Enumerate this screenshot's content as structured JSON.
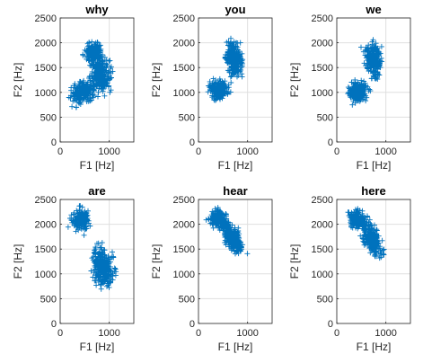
{
  "chart_data": [
    {
      "type": "scatter",
      "title": "why",
      "xlabel": "F1 [Hz]",
      "ylabel": "F2 [Hz]",
      "xlim": [
        0,
        1500
      ],
      "ylim": [
        0,
        2500
      ],
      "xticks": [
        "0",
        "1000"
      ],
      "yticks": [
        "0",
        "500",
        "1000",
        "1500",
        "2000",
        "2500"
      ],
      "grid": true,
      "marker": "+",
      "color": "#0072BD",
      "clusters": [
        {
          "cx": 450,
          "cy": 1000,
          "rx": 240,
          "ry": 170,
          "rot": 25,
          "n": 260
        },
        {
          "cx": 820,
          "cy": 1350,
          "rx": 200,
          "ry": 330,
          "rot": 5,
          "n": 240
        },
        {
          "cx": 680,
          "cy": 1800,
          "rx": 170,
          "ry": 210,
          "rot": 0,
          "n": 180
        }
      ]
    },
    {
      "type": "scatter",
      "title": "you",
      "xlabel": "F1 [Hz]",
      "ylabel": "F2 [Hz]",
      "xlim": [
        0,
        1500
      ],
      "ylim": [
        0,
        2500
      ],
      "xticks": [
        "0",
        "1000"
      ],
      "yticks": [
        "0",
        "500",
        "1000",
        "1500",
        "2000",
        "2500"
      ],
      "grid": true,
      "marker": "+",
      "color": "#0072BD",
      "clusters": [
        {
          "cx": 420,
          "cy": 1050,
          "rx": 170,
          "ry": 190,
          "rot": 40,
          "n": 220
        },
        {
          "cx": 720,
          "cy": 1650,
          "rx": 150,
          "ry": 340,
          "rot": 8,
          "n": 260
        }
      ]
    },
    {
      "type": "scatter",
      "title": "we",
      "xlabel": "F1 [Hz]",
      "ylabel": "F2 [Hz]",
      "xlim": [
        0,
        1500
      ],
      "ylim": [
        0,
        2500
      ],
      "xticks": [
        "0",
        "1000"
      ],
      "yticks": [
        "0",
        "500",
        "1000",
        "1500",
        "2000",
        "2500"
      ],
      "grid": true,
      "marker": "+",
      "color": "#0072BD",
      "clusters": [
        {
          "cx": 420,
          "cy": 1000,
          "rx": 180,
          "ry": 180,
          "rot": 35,
          "n": 220
        },
        {
          "cx": 740,
          "cy": 1650,
          "rx": 160,
          "ry": 330,
          "rot": 8,
          "n": 260
        }
      ]
    },
    {
      "type": "scatter",
      "title": "are",
      "xlabel": "F1 [Hz]",
      "ylabel": "F2 [Hz]",
      "xlim": [
        0,
        1500
      ],
      "ylim": [
        0,
        2500
      ],
      "xticks": [
        "0",
        "1000"
      ],
      "yticks": [
        "0",
        "500",
        "1000",
        "1500",
        "2000",
        "2500"
      ],
      "grid": true,
      "marker": "+",
      "color": "#0072BD",
      "clusters": [
        {
          "cx": 420,
          "cy": 2080,
          "rx": 170,
          "ry": 190,
          "rot": -30,
          "n": 200
        },
        {
          "cx": 870,
          "cy": 1130,
          "rx": 190,
          "ry": 380,
          "rot": 10,
          "n": 300
        }
      ]
    },
    {
      "type": "scatter",
      "title": "hear",
      "xlabel": "F1 [Hz]",
      "ylabel": "F2 [Hz]",
      "xlim": [
        0,
        1500
      ],
      "ylim": [
        0,
        2500
      ],
      "xticks": [
        "0",
        "1000"
      ],
      "yticks": [
        "0",
        "500",
        "1000",
        "1500",
        "2000",
        "2500"
      ],
      "grid": true,
      "marker": "+",
      "color": "#0072BD",
      "clusters": [
        {
          "cx": 420,
          "cy": 2100,
          "rx": 180,
          "ry": 160,
          "rot": -25,
          "n": 200
        },
        {
          "cx": 700,
          "cy": 1700,
          "rx": 150,
          "ry": 300,
          "rot": 25,
          "n": 260
        }
      ]
    },
    {
      "type": "scatter",
      "title": "here",
      "xlabel": "F1 [Hz]",
      "ylabel": "F2 [Hz]",
      "xlim": [
        0,
        1500
      ],
      "ylim": [
        0,
        2500
      ],
      "xticks": [
        "0",
        "1000"
      ],
      "yticks": [
        "0",
        "500",
        "1000",
        "1500",
        "2000",
        "2500"
      ],
      "grid": true,
      "marker": "+",
      "color": "#0072BD",
      "clusters": [
        {
          "cx": 420,
          "cy": 2100,
          "rx": 180,
          "ry": 150,
          "rot": -25,
          "n": 200
        },
        {
          "cx": 720,
          "cy": 1680,
          "rx": 150,
          "ry": 300,
          "rot": 25,
          "n": 260
        }
      ]
    }
  ]
}
